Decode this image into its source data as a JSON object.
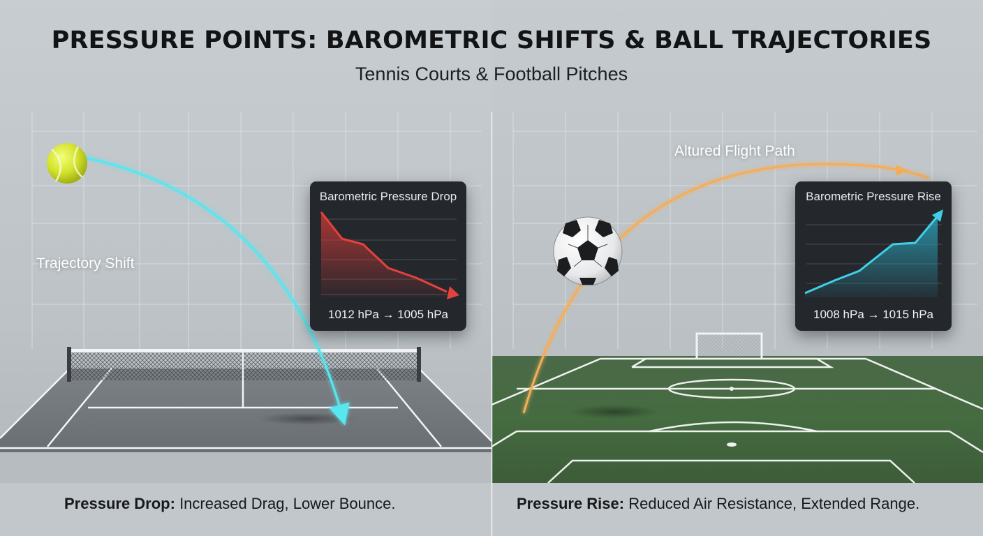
{
  "title": "PRESSURE POINTS: BAROMETRIC SHIFTS & BALL TRAJECTORIES",
  "subtitle": "Tennis Courts & Football Pitches",
  "left": {
    "trajectory_label": "Trajectory Shift",
    "panel": {
      "title": "Barometric Pressure Drop",
      "reading": "1012 hPa → 1005 hPa",
      "trend": "falling",
      "line_color": "#e4423d"
    },
    "caption": {
      "bold": "Pressure Drop:",
      "text": " Increased Drag, Lower Bounce."
    },
    "trajectory_color": "#58e6ef"
  },
  "right": {
    "trajectory_label": "Altured Flight Path",
    "panel": {
      "title": "Barometric Pressure Rise",
      "reading": "1008 hPa → 1015 hPa",
      "trend": "rising",
      "line_color": "#40cfe6"
    },
    "caption": {
      "bold": "Pressure Rise:",
      "text": " Reduced Air Resistance, Extended Range."
    },
    "trajectory_color": "#f6ad58"
  },
  "icons": [
    "tennis-ball-icon",
    "soccer-ball-icon",
    "tennis-net-icon",
    "goal-icon"
  ]
}
